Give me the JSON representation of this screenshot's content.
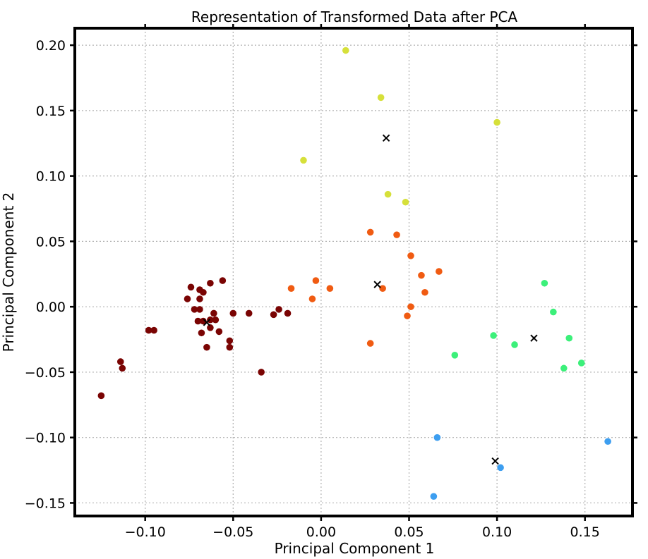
{
  "chart_data": {
    "type": "scatter",
    "title": "Representation of Transformed Data after PCA",
    "xlabel": "Principal Component 1",
    "ylabel": "Principal Component 2",
    "xlim": [
      -0.14,
      0.177
    ],
    "ylim": [
      -0.16,
      0.213
    ],
    "grid": true,
    "legend": "none",
    "x_ticks": [
      {
        "value": -0.1,
        "label": "−0.10"
      },
      {
        "value": -0.05,
        "label": "−0.05"
      },
      {
        "value": 0.0,
        "label": "0.00"
      },
      {
        "value": 0.05,
        "label": "0.05"
      },
      {
        "value": 0.1,
        "label": "0.10"
      },
      {
        "value": 0.15,
        "label": "0.15"
      }
    ],
    "y_ticks": [
      {
        "value": 0.2,
        "label": "0.20"
      },
      {
        "value": 0.15,
        "label": "0.15"
      },
      {
        "value": 0.1,
        "label": "0.10"
      },
      {
        "value": 0.05,
        "label": "0.05"
      },
      {
        "value": 0.0,
        "label": "0.00"
      },
      {
        "value": -0.05,
        "label": "−0.05"
      },
      {
        "value": -0.1,
        "label": "−0.10"
      },
      {
        "value": -0.15,
        "label": "−0.15"
      }
    ],
    "series": [
      {
        "color": "#7a0403",
        "points": [
          [
            -0.125,
            -0.068
          ],
          [
            -0.113,
            -0.047
          ],
          [
            -0.114,
            -0.042
          ],
          [
            -0.098,
            -0.018
          ],
          [
            -0.095,
            -0.018
          ],
          [
            -0.076,
            0.006
          ],
          [
            -0.074,
            0.015
          ],
          [
            -0.072,
            -0.002
          ],
          [
            -0.07,
            -0.011
          ],
          [
            -0.069,
            -0.002
          ],
          [
            -0.069,
            0.006
          ],
          [
            -0.069,
            0.013
          ],
          [
            -0.068,
            -0.02
          ],
          [
            -0.067,
            0.011
          ],
          [
            -0.067,
            -0.011
          ],
          [
            -0.065,
            -0.031
          ],
          [
            -0.063,
            -0.01
          ],
          [
            -0.063,
            0.018
          ],
          [
            -0.063,
            -0.016
          ],
          [
            -0.061,
            -0.005
          ],
          [
            -0.06,
            -0.01
          ],
          [
            -0.058,
            -0.019
          ],
          [
            -0.056,
            0.02
          ],
          [
            -0.052,
            -0.026
          ],
          [
            -0.052,
            -0.031
          ],
          [
            -0.05,
            -0.005
          ],
          [
            -0.041,
            -0.005
          ],
          [
            -0.034,
            -0.05
          ],
          [
            -0.027,
            -0.006
          ],
          [
            -0.024,
            -0.002
          ],
          [
            -0.019,
            -0.005
          ]
        ]
      },
      {
        "color": "#f05b12",
        "points": [
          [
            -0.017,
            0.014
          ],
          [
            -0.005,
            0.006
          ],
          [
            -0.003,
            0.02
          ],
          [
            0.005,
            0.014
          ],
          [
            0.028,
            0.057
          ],
          [
            0.028,
            -0.028
          ],
          [
            0.035,
            0.014
          ],
          [
            0.043,
            0.055
          ],
          [
            0.049,
            -0.007
          ],
          [
            0.051,
            0.0
          ],
          [
            0.051,
            0.039
          ],
          [
            0.057,
            0.024
          ],
          [
            0.059,
            0.011
          ],
          [
            0.067,
            0.027
          ]
        ]
      },
      {
        "color": "#d6e03a",
        "points": [
          [
            0.014,
            0.196
          ],
          [
            0.034,
            0.16
          ],
          [
            -0.01,
            0.112
          ],
          [
            0.038,
            0.086
          ],
          [
            0.048,
            0.08
          ],
          [
            0.1,
            0.141
          ]
        ]
      },
      {
        "color": "#3cf07a",
        "points": [
          [
            0.076,
            -0.037
          ],
          [
            0.098,
            -0.022
          ],
          [
            0.11,
            -0.029
          ],
          [
            0.127,
            0.018
          ],
          [
            0.132,
            -0.004
          ],
          [
            0.138,
            -0.047
          ],
          [
            0.141,
            -0.024
          ],
          [
            0.148,
            -0.043
          ]
        ]
      },
      {
        "color": "#3d9ef0",
        "points": [
          [
            0.066,
            -0.1
          ],
          [
            0.064,
            -0.145
          ],
          [
            0.102,
            -0.123
          ],
          [
            0.163,
            -0.103
          ]
        ]
      }
    ],
    "centroids": {
      "marker": "x",
      "color": "#000000",
      "points": [
        [
          -0.065,
          -0.012
        ],
        [
          0.032,
          0.017
        ],
        [
          0.037,
          0.129
        ],
        [
          0.121,
          -0.024
        ],
        [
          0.099,
          -0.118
        ]
      ]
    }
  }
}
